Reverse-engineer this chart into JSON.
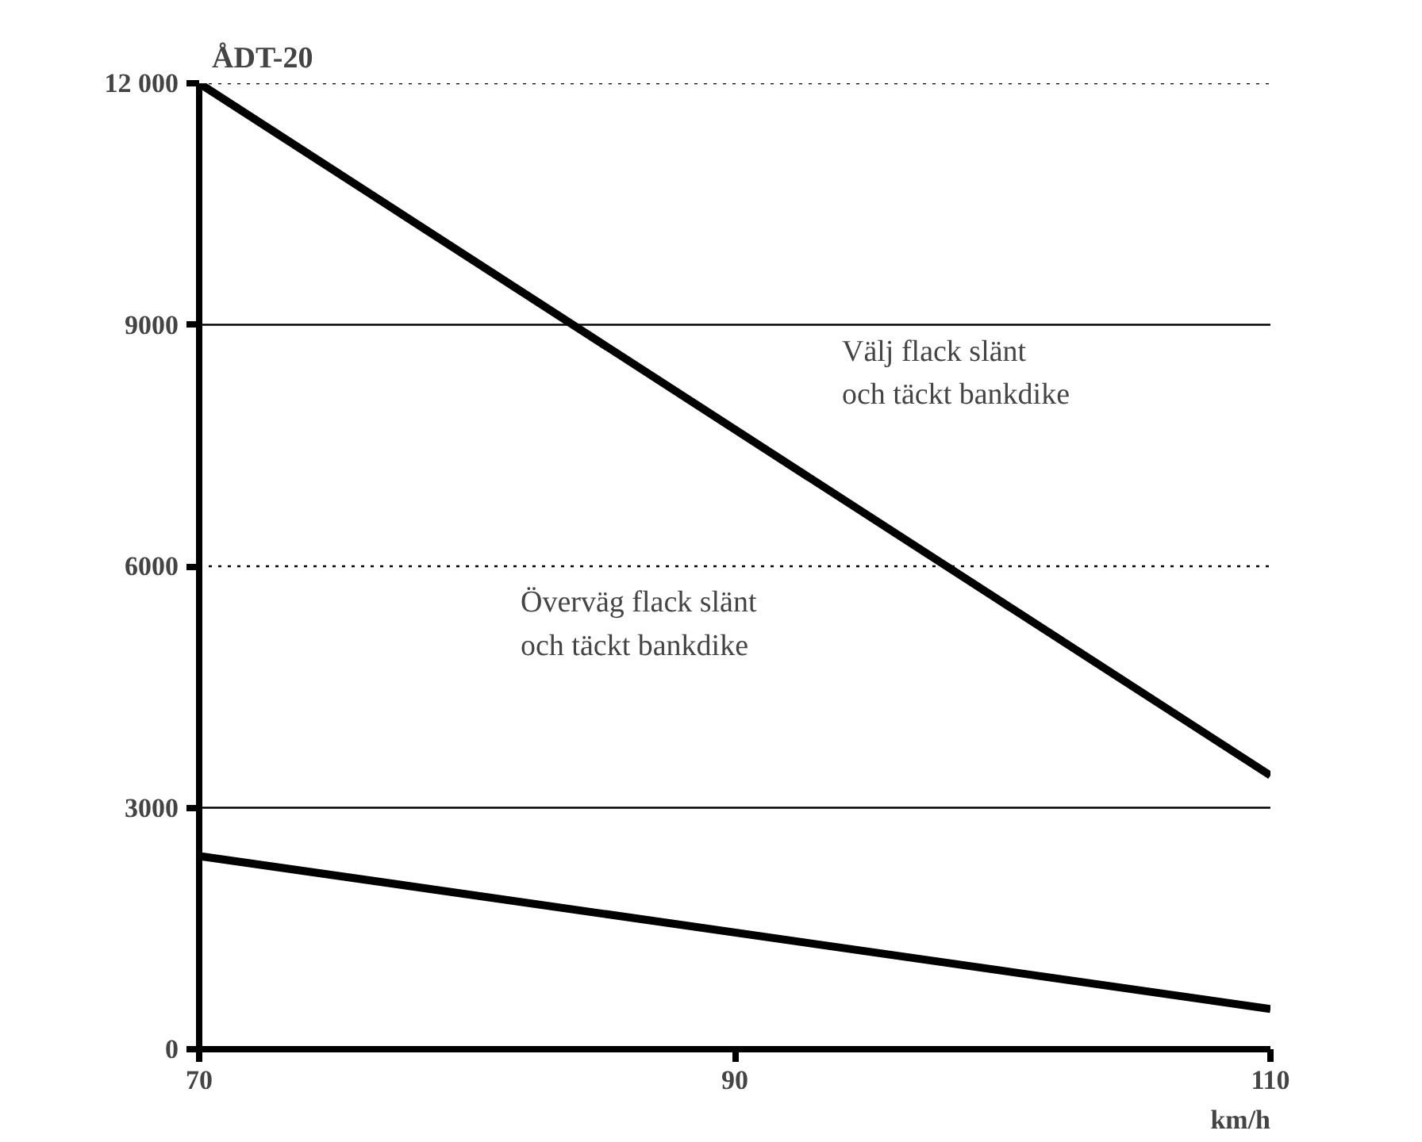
{
  "chart_data": {
    "type": "line",
    "ylabel": "ÅDT-20",
    "xlabel": "km/h",
    "x": [
      70,
      110
    ],
    "series": [
      {
        "color": "#000000",
        "values": [
          12000,
          3400
        ]
      },
      {
        "color": "#000000",
        "values": [
          2400,
          500
        ]
      }
    ],
    "xlim": [
      70,
      110
    ],
    "ylim": [
      0,
      12000
    ],
    "xticks": [
      70,
      90,
      110
    ],
    "yticks": [
      0,
      3000,
      6000,
      9000,
      {
        "value": 12000,
        "label": "12 000"
      }
    ],
    "grid": false,
    "marker": "none",
    "line_style": "solid",
    "ref_lines": [
      {
        "axis": "y",
        "value": 3000,
        "line_style": "solid"
      },
      {
        "axis": "y",
        "value": 6000,
        "line_style": "dotted"
      },
      {
        "axis": "y",
        "value": 9000,
        "line_style": "solid"
      },
      {
        "axis": "y",
        "value": 12000,
        "line_style": "dotted"
      }
    ],
    "annotations": [
      "Välj flack slänt\noch täckt bankdike",
      "Överväg flack slänt\noch täckt bankdike"
    ]
  }
}
